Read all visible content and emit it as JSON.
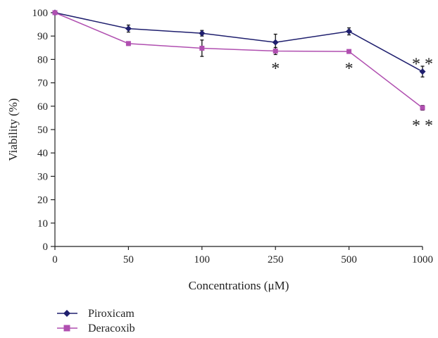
{
  "chart_data": {
    "type": "line",
    "title": "",
    "xlabel": "Concentrations (μM)",
    "ylabel": "Viability (%)",
    "categories": [
      "0",
      "50",
      "100",
      "250",
      "500",
      "1000"
    ],
    "y_ticks": [
      "0",
      "10",
      "20",
      "30",
      "40",
      "50",
      "60",
      "70",
      "80",
      "90",
      "100"
    ],
    "ylim": [
      0,
      100
    ],
    "grid": false,
    "legend_position": "bottom-left",
    "series": [
      {
        "name": "Piroxicam",
        "color": "#1f1f6e",
        "marker": "diamond",
        "values": [
          100,
          93.2,
          91.2,
          87.3,
          92.0,
          74.8
        ],
        "errors": [
          0,
          1.5,
          1.2,
          3.5,
          1.5,
          2.3
        ]
      },
      {
        "name": "Deracoxib",
        "color": "#b04fb0",
        "marker": "square",
        "values": [
          100,
          86.8,
          84.8,
          83.6,
          83.4,
          59.3
        ],
        "errors": [
          0,
          0.8,
          3.5,
          1.5,
          0.5,
          1.0
        ]
      }
    ],
    "annotations": [
      {
        "text": "*",
        "category": "250",
        "y": 76.8
      },
      {
        "text": "*",
        "category": "500",
        "y": 76.8
      },
      {
        "text": "* *",
        "category": "1000",
        "y": 78.8
      },
      {
        "text": "* *",
        "category": "1000",
        "y": 52.4
      }
    ]
  }
}
